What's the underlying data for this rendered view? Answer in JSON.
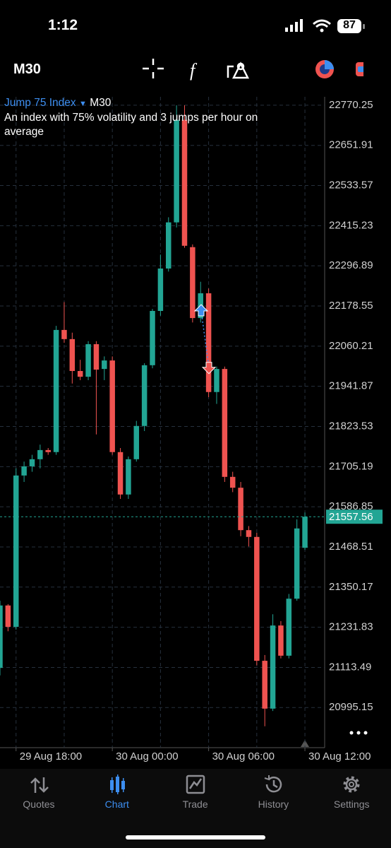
{
  "status_bar": {
    "time": "1:12",
    "battery": "87"
  },
  "toolbar": {
    "timeframe": "M30"
  },
  "chart_data": {
    "type": "candlestick",
    "title": "Jump 75 Index",
    "timeframe": "M30",
    "subtitle": "An index with 75% volatility and 3 jumps per hour on average",
    "up_color": "#22a594",
    "down_color": "#ef5350",
    "grid": true,
    "open": [
      21112,
      21296,
      21233,
      21679,
      21706,
      21727,
      21754,
      21748,
      22108,
      22081,
      21987,
      21970,
      22066,
      21993,
      22018,
      21748,
      21623,
      21727,
      21825,
      22004,
      22164,
      22289,
      22425,
      22727,
      22352,
      22143,
      22216,
      21925,
      21993,
      21675,
      21643,
      21518,
      21498,
      21133,
      20992,
      21237,
      21148,
      21316,
      21466
    ],
    "high": [
      21310,
      21300,
      21700,
      21720,
      21740,
      21770,
      21760,
      22120,
      22190,
      22100,
      22020,
      22075,
      22075,
      22030,
      22030,
      21760,
      21735,
      21840,
      22010,
      22170,
      22330,
      22440,
      22770,
      22770,
      22360,
      22250,
      22230,
      22000,
      22000,
      21690,
      21660,
      21530,
      21510,
      21150,
      21270,
      21250,
      21330,
      21550,
      21570
    ],
    "low": [
      21090,
      21220,
      21225,
      21660,
      21690,
      21700,
      21740,
      21740,
      22070,
      21950,
      21960,
      21960,
      21800,
      21960,
      21740,
      21610,
      21610,
      21720,
      21810,
      21995,
      22150,
      22280,
      22410,
      22350,
      22130,
      22130,
      21910,
      21890,
      21660,
      21630,
      21500,
      21470,
      21120,
      20940,
      20985,
      21140,
      21140,
      21310,
      21460
    ],
    "close": [
      21296,
      21233,
      21679,
      21706,
      21727,
      21754,
      21748,
      22108,
      22081,
      21987,
      21970,
      22066,
      21991,
      22018,
      21748,
      21623,
      21727,
      21825,
      22004,
      22164,
      22289,
      22425,
      22727,
      22356,
      22143,
      22216,
      21925,
      21993,
      21675,
      21643,
      21518,
      21498,
      21133,
      20992,
      21237,
      21148,
      21316,
      21523,
      21557.56
    ],
    "last_price": 21557.56,
    "buy_price": 22164,
    "sell_price": 21998,
    "ylim": [
      20877,
      22795
    ],
    "yticks": [
      22770.25,
      22651.91,
      22533.57,
      22415.23,
      22296.89,
      22178.55,
      22060.21,
      21941.87,
      21823.53,
      21705.19,
      21586.85,
      21468.51,
      21350.17,
      21231.83,
      21113.49,
      20995.15
    ],
    "xlim": [
      0,
      40.46
    ],
    "xticks": [
      {
        "value": 2,
        "label": "29 Aug 18:00"
      },
      {
        "value": 8,
        "label": null
      },
      {
        "value": 14,
        "label": "30 Aug 00:00"
      },
      {
        "value": 20,
        "label": null
      },
      {
        "value": 26,
        "label": "30 Aug 06:00"
      },
      {
        "value": 32,
        "label": null
      },
      {
        "value": 38,
        "label": "30 Aug 12:00"
      }
    ]
  },
  "nav": {
    "items": [
      "Quotes",
      "Chart",
      "Trade",
      "History",
      "Settings"
    ],
    "active": 1,
    "active_color": "#3d8ef0"
  }
}
